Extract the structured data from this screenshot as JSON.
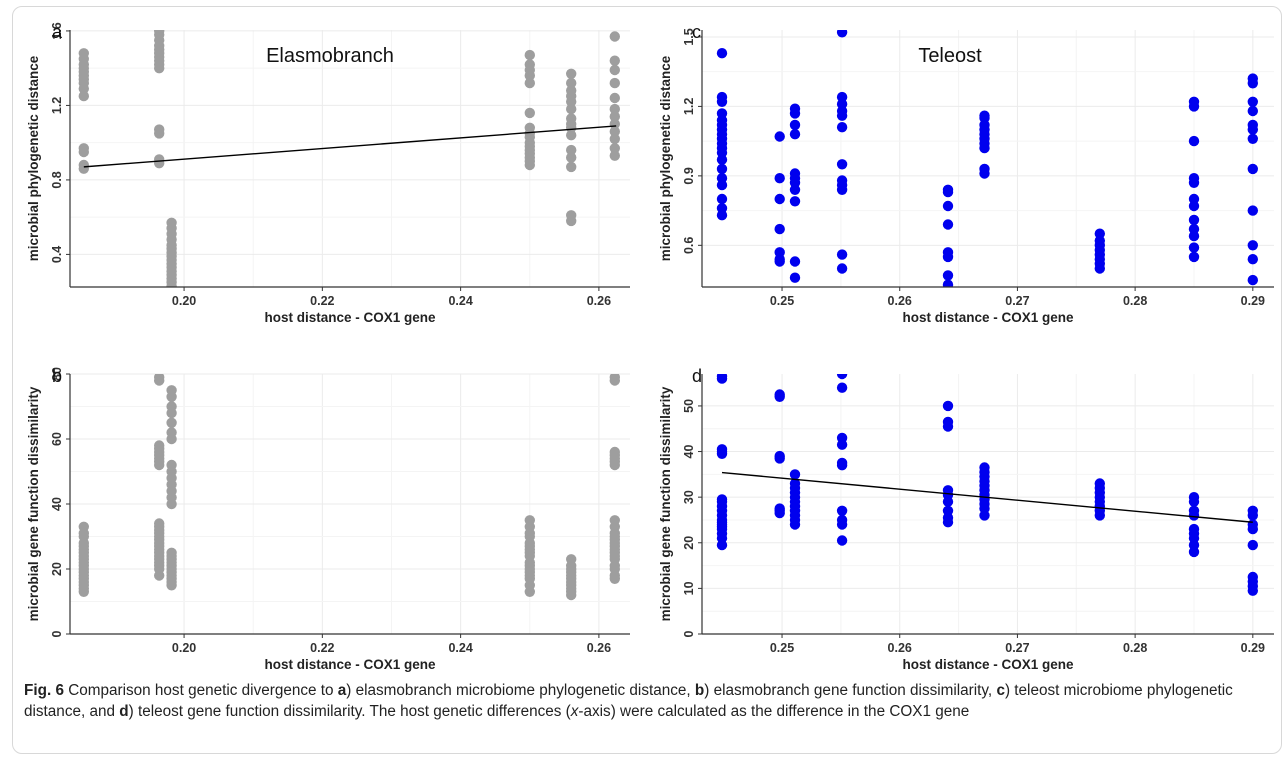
{
  "figure": {
    "caption": {
      "label": "Fig. 6",
      "parts": [
        {
          "text": " Comparison host genetic divergence to ",
          "style": "normal"
        },
        {
          "text": "a",
          "style": "bold"
        },
        {
          "text": ") elasmobranch microbiome phylogenetic distance, ",
          "style": "normal"
        },
        {
          "text": "b",
          "style": "bold"
        },
        {
          "text": ") elasmobranch gene function dissimilarity, ",
          "style": "normal"
        },
        {
          "text": "c",
          "style": "bold"
        },
        {
          "text": ") teleost microbiome phylogenetic distance, and ",
          "style": "normal"
        },
        {
          "text": "d",
          "style": "bold"
        },
        {
          "text": ") teleost gene function dissimilarity. The host genetic differences (",
          "style": "normal"
        },
        {
          "text": "x",
          "style": "italic"
        },
        {
          "text": "-axis) were calculated as the difference in the COX1 gene",
          "style": "normal"
        }
      ]
    }
  },
  "colors": {
    "grey_points": "#9e9e9e",
    "blue_points": "#0000ee",
    "grid": "#ebebeb",
    "axis": "#333333",
    "fit_line": "#000000"
  },
  "chart_data": [
    {
      "panel": "a",
      "type": "scatter",
      "title": "Elasmobranch",
      "xlabel": "host distance - COX1 gene",
      "ylabel": "microbial phylogenetic distance",
      "xlim": [
        0.1835,
        0.2645
      ],
      "ylim": [
        0.225,
        1.605
      ],
      "xticks": [
        0.2,
        0.22,
        0.24,
        0.26
      ],
      "xtick_labels": [
        "0.20",
        "0.22",
        "0.24",
        "0.26"
      ],
      "yticks": [
        0.4,
        0.8,
        1.2,
        1.6
      ],
      "ytick_labels": [
        "0.4",
        "0.8",
        "1.2",
        "1.6"
      ],
      "grid": true,
      "point_color": "grey",
      "trend_line": {
        "x": [
          0.1855,
          0.2625
        ],
        "y": [
          0.87,
          1.09
        ]
      },
      "series": [
        {
          "x": 0.1855,
          "y": [
            1.48,
            1.45,
            1.42,
            1.4,
            1.38,
            1.36,
            1.34,
            1.32,
            1.29,
            1.25,
            0.97,
            0.95,
            0.88,
            0.86
          ]
        },
        {
          "x": 0.1964,
          "y": [
            1.6,
            1.58,
            1.55,
            1.52,
            1.5,
            1.48,
            1.46,
            1.44,
            1.42,
            1.4,
            1.07,
            1.05,
            0.91,
            0.89
          ]
        },
        {
          "x": 0.1982,
          "y": [
            0.57,
            0.54,
            0.51,
            0.48,
            0.45,
            0.43,
            0.41,
            0.39,
            0.37,
            0.35,
            0.33,
            0.31,
            0.29,
            0.27,
            0.25,
            0.23
          ]
        },
        {
          "x": 0.25,
          "y": [
            1.47,
            1.42,
            1.39,
            1.36,
            1.32,
            1.16,
            1.08,
            1.05,
            1.03,
            1.0,
            0.98,
            0.96,
            0.94,
            0.92,
            0.9,
            0.88
          ]
        },
        {
          "x": 0.256,
          "y": [
            1.37,
            1.32,
            1.28,
            1.25,
            1.22,
            1.18,
            1.13,
            1.1,
            1.08,
            1.04,
            0.96,
            0.92,
            0.87,
            0.61,
            0.58
          ]
        },
        {
          "x": 0.2623,
          "y": [
            1.57,
            1.44,
            1.39,
            1.32,
            1.24,
            1.18,
            1.14,
            1.1,
            1.06,
            1.02,
            0.97,
            0.93
          ]
        }
      ]
    },
    {
      "panel": "b",
      "type": "scatter",
      "title": "",
      "xlabel": "host distance - COX1 gene",
      "ylabel": "microbial gene function dissimilarity",
      "xlim": [
        0.1835,
        0.2645
      ],
      "ylim": [
        0,
        80
      ],
      "xticks": [
        0.2,
        0.22,
        0.24,
        0.26
      ],
      "xtick_labels": [
        "0.20",
        "0.22",
        "0.24",
        "0.26"
      ],
      "yticks": [
        0,
        20,
        40,
        60,
        80
      ],
      "ytick_labels": [
        "0",
        "20",
        "40",
        "60",
        "80"
      ],
      "grid": true,
      "point_color": "grey",
      "trend_line": null,
      "series": [
        {
          "x": 0.1855,
          "y": [
            33,
            31,
            30,
            28,
            27,
            26,
            25,
            24,
            23,
            22,
            21,
            20,
            19,
            18,
            17,
            16,
            15,
            14,
            13
          ]
        },
        {
          "x": 0.1964,
          "y": [
            79,
            78,
            58,
            57,
            56,
            55,
            54,
            53,
            52,
            34,
            33,
            32,
            31,
            30,
            29,
            28,
            27,
            26,
            25,
            24,
            23,
            22,
            21,
            20,
            18
          ]
        },
        {
          "x": 0.1982,
          "y": [
            75,
            73,
            70,
            68,
            65,
            62,
            60,
            52,
            50,
            48,
            46,
            44,
            42,
            40,
            25,
            24,
            23,
            22,
            21,
            20,
            19,
            18,
            17,
            16,
            15
          ]
        },
        {
          "x": 0.25,
          "y": [
            35,
            33,
            31,
            30,
            28,
            27,
            26,
            25,
            24,
            22,
            21,
            20,
            19,
            18,
            17,
            15,
            13
          ]
        },
        {
          "x": 0.256,
          "y": [
            23,
            21,
            20,
            19,
            18,
            17,
            16,
            15,
            14,
            13,
            12
          ]
        },
        {
          "x": 0.2623,
          "y": [
            79,
            78,
            56,
            55,
            54,
            53,
            52,
            35,
            33,
            31,
            30,
            29,
            28,
            27,
            26,
            25,
            24,
            23,
            21,
            20,
            18,
            17
          ]
        }
      ]
    },
    {
      "panel": "c",
      "type": "scatter",
      "title": "Teleost",
      "xlabel": "host distance - COX1 gene",
      "ylabel": "microbial phylogenetic distance",
      "xlim": [
        0.2432,
        0.2918
      ],
      "ylim": [
        0.42,
        1.53
      ],
      "xticks": [
        0.25,
        0.26,
        0.27,
        0.28,
        0.29
      ],
      "xtick_labels": [
        "0.25",
        "0.26",
        "0.27",
        "0.28",
        "0.29"
      ],
      "yticks": [
        0.6,
        0.9,
        1.2,
        1.5
      ],
      "ytick_labels": [
        "0.6",
        "0.9",
        "1.2",
        "1.5"
      ],
      "grid": true,
      "point_color": "blue",
      "trend_line": null,
      "series": [
        {
          "x": 0.2449,
          "y": [
            1.43,
            1.24,
            1.22,
            1.17,
            1.14,
            1.12,
            1.1,
            1.08,
            1.06,
            1.04,
            1.02,
            1.0,
            0.97,
            0.93,
            0.89,
            0.86,
            0.8,
            0.76,
            0.73
          ]
        },
        {
          "x": 0.2498,
          "y": [
            1.07,
            0.89,
            0.8,
            0.67,
            0.57,
            0.54,
            0.53
          ]
        },
        {
          "x": 0.2511,
          "y": [
            1.19,
            1.17,
            1.12,
            1.08,
            0.91,
            0.89,
            0.87,
            0.84,
            0.79,
            0.53,
            0.46
          ]
        },
        {
          "x": 0.2551,
          "y": [
            1.52,
            1.24,
            1.21,
            1.18,
            1.16,
            1.11,
            0.95,
            0.88,
            0.86,
            0.84,
            0.56,
            0.5
          ]
        },
        {
          "x": 0.2641,
          "y": [
            0.84,
            0.83,
            0.77,
            0.69,
            0.57,
            0.55,
            0.47,
            0.43
          ]
        },
        {
          "x": 0.2672,
          "y": [
            1.16,
            1.15,
            1.12,
            1.1,
            1.08,
            1.06,
            1.04,
            1.02,
            0.93,
            0.91
          ]
        },
        {
          "x": 0.277,
          "y": [
            0.65,
            0.62,
            0.6,
            0.58,
            0.56,
            0.54,
            0.52,
            0.5
          ]
        },
        {
          "x": 0.285,
          "y": [
            1.22,
            1.2,
            1.05,
            0.89,
            0.87,
            0.8,
            0.77,
            0.71,
            0.67,
            0.64,
            0.59,
            0.55
          ]
        },
        {
          "x": 0.29,
          "y": [
            1.32,
            1.3,
            1.22,
            1.18,
            1.12,
            1.1,
            1.06,
            0.93,
            0.75,
            0.6,
            0.54,
            0.45
          ]
        }
      ]
    },
    {
      "panel": "d",
      "type": "scatter",
      "title": "",
      "xlabel": "host distance - COX1 gene",
      "ylabel": "microbial gene function dissimilarity",
      "xlim": [
        0.2432,
        0.2918
      ],
      "ylim": [
        0,
        57
      ],
      "xticks": [
        0.25,
        0.26,
        0.27,
        0.28,
        0.29
      ],
      "xtick_labels": [
        "0.25",
        "0.26",
        "0.27",
        "0.28",
        "0.29"
      ],
      "yticks": [
        0,
        10,
        20,
        30,
        40,
        50
      ],
      "ytick_labels": [
        "0",
        "10",
        "20",
        "30",
        "40",
        "50"
      ],
      "grid": true,
      "point_color": "blue",
      "trend_line": {
        "x": [
          0.2449,
          0.29
        ],
        "y": [
          35.4,
          24.5
        ]
      },
      "series": [
        {
          "x": 0.2449,
          "y": [
            56.5,
            56.0,
            40.5,
            40.0,
            39.5,
            29.5,
            29.0,
            28.0,
            27.0,
            26.0,
            25.0,
            24.5,
            24.0,
            23.5,
            23.0,
            22.0,
            21.0,
            19.5
          ]
        },
        {
          "x": 0.2498,
          "y": [
            52.5,
            52.0,
            39.0,
            38.5,
            27.5,
            27.0,
            26.5
          ]
        },
        {
          "x": 0.2511,
          "y": [
            35.0,
            33.0,
            32.0,
            31.0,
            30.0,
            29.0,
            28.0,
            27.0,
            26.0,
            25.0,
            24.0
          ]
        },
        {
          "x": 0.2551,
          "y": [
            57.0,
            54.0,
            43.0,
            41.5,
            37.5,
            37.0,
            27.0,
            25.0,
            24.0,
            20.5
          ]
        },
        {
          "x": 0.2641,
          "y": [
            50.0,
            46.5,
            45.5,
            31.5,
            30.5,
            29.0,
            27.0,
            25.5,
            24.5
          ]
        },
        {
          "x": 0.2672,
          "y": [
            36.5,
            35.5,
            34.5,
            33.5,
            32.5,
            31.5,
            30.5,
            29.5,
            28.5,
            27.5,
            26.0
          ]
        },
        {
          "x": 0.277,
          "y": [
            33.0,
            32.0,
            31.0,
            30.0,
            29.0,
            28.0,
            27.0,
            26.0
          ]
        },
        {
          "x": 0.285,
          "y": [
            30.0,
            29.0,
            27.0,
            26.0,
            23.0,
            22.0,
            21.0,
            19.5,
            18.0
          ]
        },
        {
          "x": 0.29,
          "y": [
            27.0,
            26.0,
            24.0,
            23.0,
            19.5,
            12.5,
            11.5,
            10.5,
            9.5
          ]
        }
      ]
    }
  ]
}
